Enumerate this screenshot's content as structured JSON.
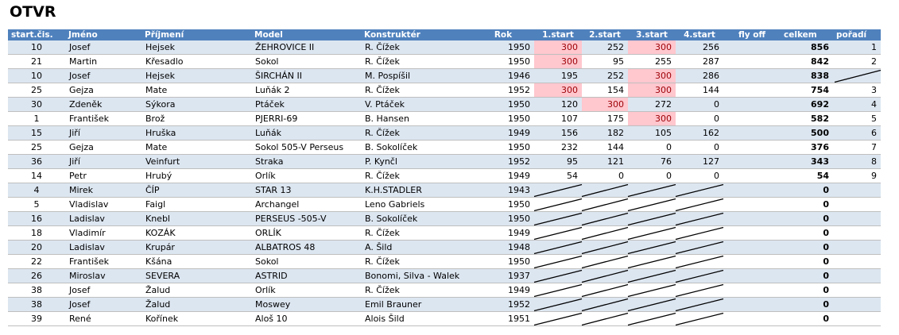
{
  "title": "OTVR",
  "headers": [
    "start.čis.",
    "Jméno",
    "Příjmení",
    "Model",
    "Konstruktér",
    "Rok",
    "1.start",
    "2.start",
    "3.start",
    "4.start",
    "fly off",
    "celkem",
    "pořadí"
  ],
  "rows": [
    {
      "cells": [
        "10",
        "Josef",
        "Hejsek",
        "ŽEHROVICE II",
        "R. Čížek",
        "1950",
        "300",
        "252",
        "300",
        "256",
        "",
        "856",
        "1"
      ],
      "hl": [
        6,
        8
      ]
    },
    {
      "cells": [
        "21",
        "Martin",
        "Křesadlo",
        "Sokol",
        "R. Čížek",
        "1950",
        "300",
        "95",
        "255",
        "287",
        "",
        "842",
        "2"
      ],
      "hl": [
        6
      ]
    },
    {
      "cells": [
        "10",
        "Josef",
        "Hejsek",
        "ŠIRCHÁN II",
        "M. Pospíšil",
        "1946",
        "195",
        "252",
        "300",
        "286",
        "",
        "838",
        ""
      ],
      "hl": [
        8
      ]
    },
    {
      "cells": [
        "25",
        "Gejza",
        "Mate",
        "Luňák 2",
        "R. Čížek",
        "1952",
        "300",
        "154",
        "300",
        "144",
        "",
        "754",
        "3"
      ],
      "hl": [
        6,
        8
      ]
    },
    {
      "cells": [
        "30",
        "Zdeněk",
        "Sýkora",
        "Ptáček",
        "V. Ptáček",
        "1950",
        "120",
        "300",
        "272",
        "0",
        "",
        "692",
        "4"
      ],
      "hl": [
        7
      ]
    },
    {
      "cells": [
        "1",
        "František",
        "Brož",
        "PJERRI-69",
        "B. Hansen",
        "1950",
        "107",
        "175",
        "300",
        "0",
        "",
        "582",
        "5"
      ],
      "hl": [
        8
      ]
    },
    {
      "cells": [
        "15",
        "Jiří",
        "Hruška",
        "Luňák",
        "R. Čížek",
        "1949",
        "156",
        "182",
        "105",
        "162",
        "",
        "500",
        "6"
      ],
      "hl": []
    },
    {
      "cells": [
        "25",
        "Gejza",
        "Mate",
        "Sokol 505-V Perseus",
        "B. Sokolíček",
        "1950",
        "232",
        "144",
        "0",
        "0",
        "",
        "376",
        "7"
      ],
      "hl": []
    },
    {
      "cells": [
        "36",
        "Jiří",
        "Veinfurt",
        "Straka",
        "P. Kynčl",
        "1952",
        "95",
        "121",
        "76",
        "127",
        "",
        "343",
        "8"
      ],
      "hl": []
    },
    {
      "cells": [
        "14",
        "Petr",
        "Hrubý",
        "Orlík",
        "R. Čížek",
        "1949",
        "54",
        "0",
        "0",
        "0",
        "",
        "54",
        "9"
      ],
      "hl": []
    },
    {
      "cells": [
        "4",
        "Mirek",
        "ČÍP",
        "STAR 13",
        "K.H.STADLER",
        "1943",
        "",
        "",
        "",
        "",
        "",
        "0",
        ""
      ],
      "hl": []
    },
    {
      "cells": [
        "5",
        "Vladislav",
        "Faigl",
        "Archangel",
        "Leno Gabriels",
        "1950",
        "",
        "",
        "",
        "",
        "",
        "0",
        ""
      ],
      "hl": []
    },
    {
      "cells": [
        "16",
        "Ladislav",
        "Knebl",
        "PERSEUS -505-V",
        "B. Sokolíček",
        "1950",
        "",
        "",
        "",
        "",
        "",
        "0",
        ""
      ],
      "hl": []
    },
    {
      "cells": [
        "18",
        "Vladimír",
        "KOZÁK",
        "ORLÍK",
        "R. Čížek",
        "1949",
        "",
        "",
        "",
        "",
        "",
        "0",
        ""
      ],
      "hl": []
    },
    {
      "cells": [
        "20",
        "Ladislav",
        "Krupár",
        "ALBATROS 48",
        "A. Šild",
        "1948",
        "",
        "",
        "",
        "",
        "",
        "0",
        ""
      ],
      "hl": []
    },
    {
      "cells": [
        "22",
        "František",
        "Kšána",
        "Sokol",
        "R. Čížek",
        "1950",
        "",
        "",
        "",
        "",
        "",
        "0",
        ""
      ],
      "hl": []
    },
    {
      "cells": [
        "26",
        "Miroslav",
        "SEVERA",
        "ASTRID",
        "Bonomi, Silva - Walek",
        "1937",
        "",
        "",
        "",
        "",
        "",
        "0",
        ""
      ],
      "hl": []
    },
    {
      "cells": [
        "38",
        "Josef",
        "Žalud",
        "Orlík",
        "R. Čížek",
        "1949",
        "",
        "",
        "",
        "",
        "",
        "0",
        ""
      ],
      "hl": []
    },
    {
      "cells": [
        "38",
        "Josef",
        "Žalud",
        "Moswey",
        "Emil Brauner",
        "1952",
        "",
        "",
        "",
        "",
        "",
        "0",
        ""
      ],
      "hl": []
    },
    {
      "cells": [
        "39",
        "René",
        "Kořínek",
        "Aloš 10",
        "Alois Šild",
        "1951",
        "",
        "",
        "",
        "",
        "",
        "0",
        ""
      ],
      "hl": []
    }
  ],
  "colors": {
    "header": "#4f81bd",
    "band": "#dce6f1",
    "highlight_bg": "#ffc7ce",
    "highlight_text": "#9c0006"
  }
}
